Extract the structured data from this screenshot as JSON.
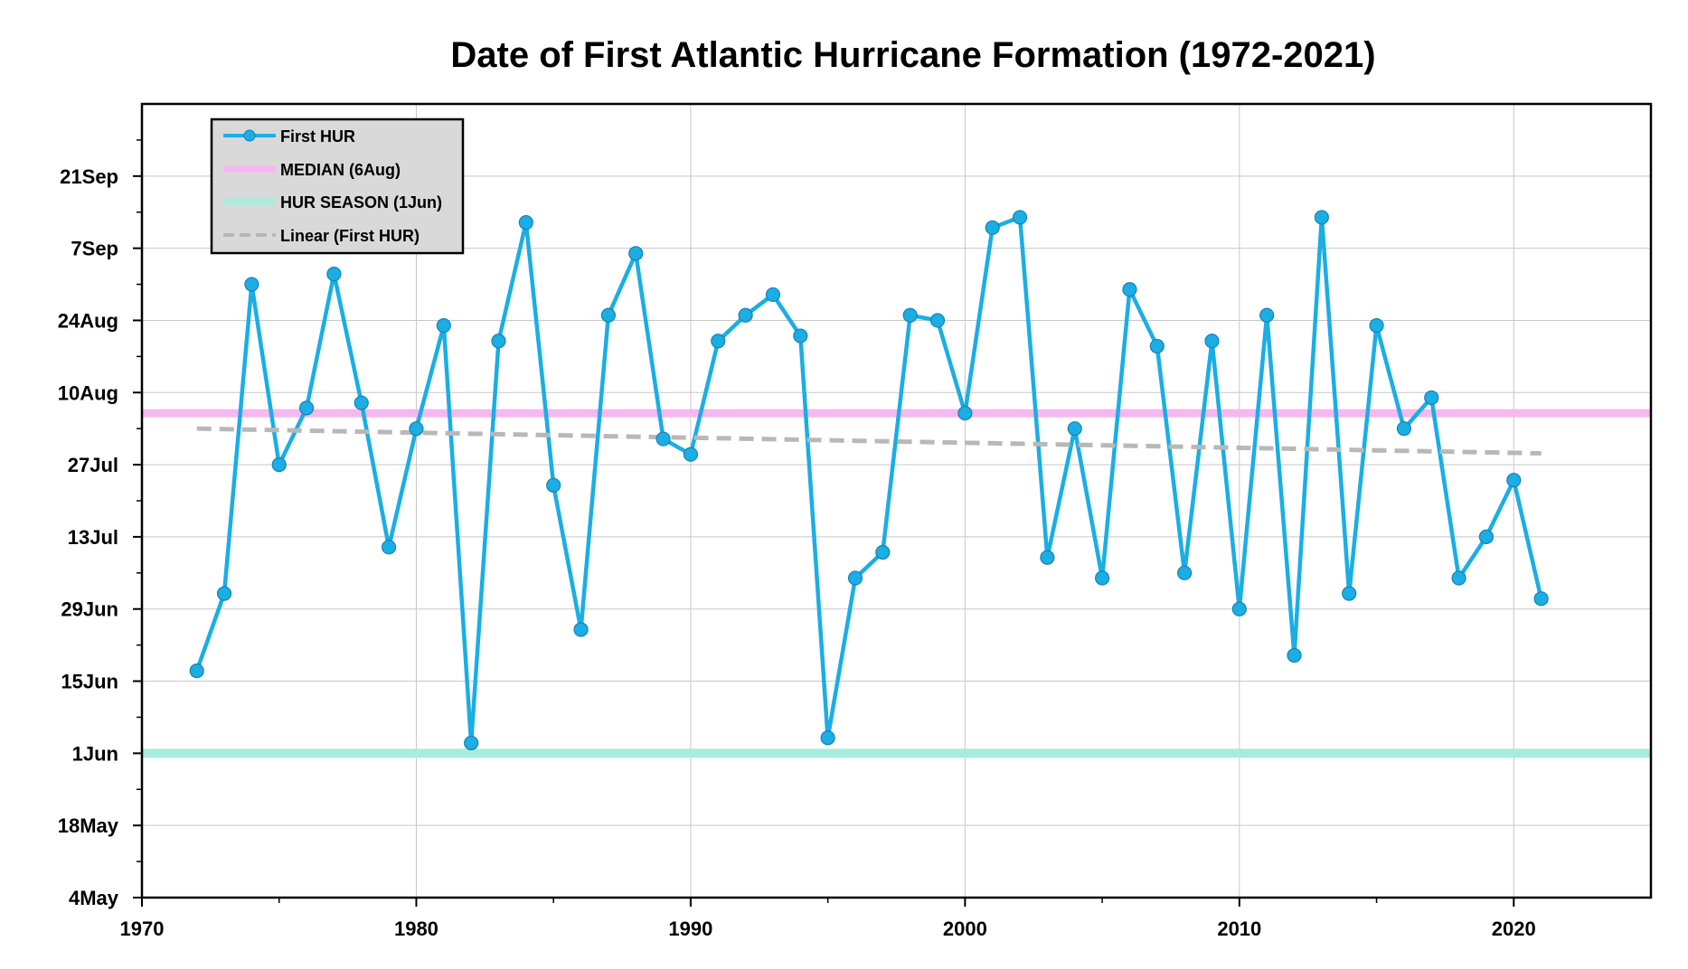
{
  "chart_data": {
    "type": "line",
    "title": "Date of First Atlantic Hurricane Formation (1972-2021)",
    "xlabel": "",
    "ylabel": "",
    "xlim": [
      1970,
      2025
    ],
    "ylim": [
      124,
      278
    ],
    "x_ticks": [
      1970,
      1980,
      1990,
      2000,
      2010,
      2020
    ],
    "y_ticks": [
      {
        "value": 124,
        "label": "4May"
      },
      {
        "value": 138,
        "label": "18May"
      },
      {
        "value": 152,
        "label": "1Jun"
      },
      {
        "value": 166,
        "label": "15Jun"
      },
      {
        "value": 180,
        "label": "29Jun"
      },
      {
        "value": 194,
        "label": "13Jul"
      },
      {
        "value": 208,
        "label": "27Jul"
      },
      {
        "value": 222,
        "label": "10Aug"
      },
      {
        "value": 236,
        "label": "24Aug"
      },
      {
        "value": 250,
        "label": "7Sep"
      },
      {
        "value": 264,
        "label": "21Sep"
      }
    ],
    "grid": true,
    "legend_position": "top-left",
    "series": [
      {
        "name": "First HUR",
        "color": "#1aaee5",
        "x": [
          1972,
          1973,
          1974,
          1975,
          1976,
          1977,
          1978,
          1979,
          1980,
          1981,
          1982,
          1983,
          1984,
          1985,
          1986,
          1987,
          1988,
          1989,
          1990,
          1991,
          1992,
          1993,
          1994,
          1995,
          1996,
          1997,
          1998,
          1999,
          2000,
          2001,
          2002,
          2003,
          2004,
          2005,
          2006,
          2007,
          2008,
          2009,
          2010,
          2011,
          2012,
          2013,
          2014,
          2015,
          2016,
          2017,
          2018,
          2019,
          2020,
          2021
        ],
        "values": [
          168,
          183,
          243,
          208,
          219,
          245,
          220,
          192,
          215,
          235,
          154,
          232,
          255,
          204,
          176,
          237,
          249,
          213,
          210,
          232,
          237,
          241,
          233,
          155,
          186,
          191,
          237,
          236,
          218,
          254,
          256,
          190,
          215,
          186,
          242,
          231,
          187,
          232,
          180,
          237,
          171,
          256,
          183,
          235,
          215,
          221,
          186,
          194,
          205,
          182
        ]
      },
      {
        "name": "MEDIAN (6Aug)",
        "color": "#f5b8f0",
        "value": 218
      },
      {
        "name": "HUR SEASON (1Jun)",
        "color": "#a8ecdc",
        "value": 152
      },
      {
        "name": "Linear (First HUR)",
        "color": "#b8b8b8",
        "x": [
          1972,
          2021
        ],
        "values": [
          215,
          210.2
        ]
      }
    ]
  }
}
